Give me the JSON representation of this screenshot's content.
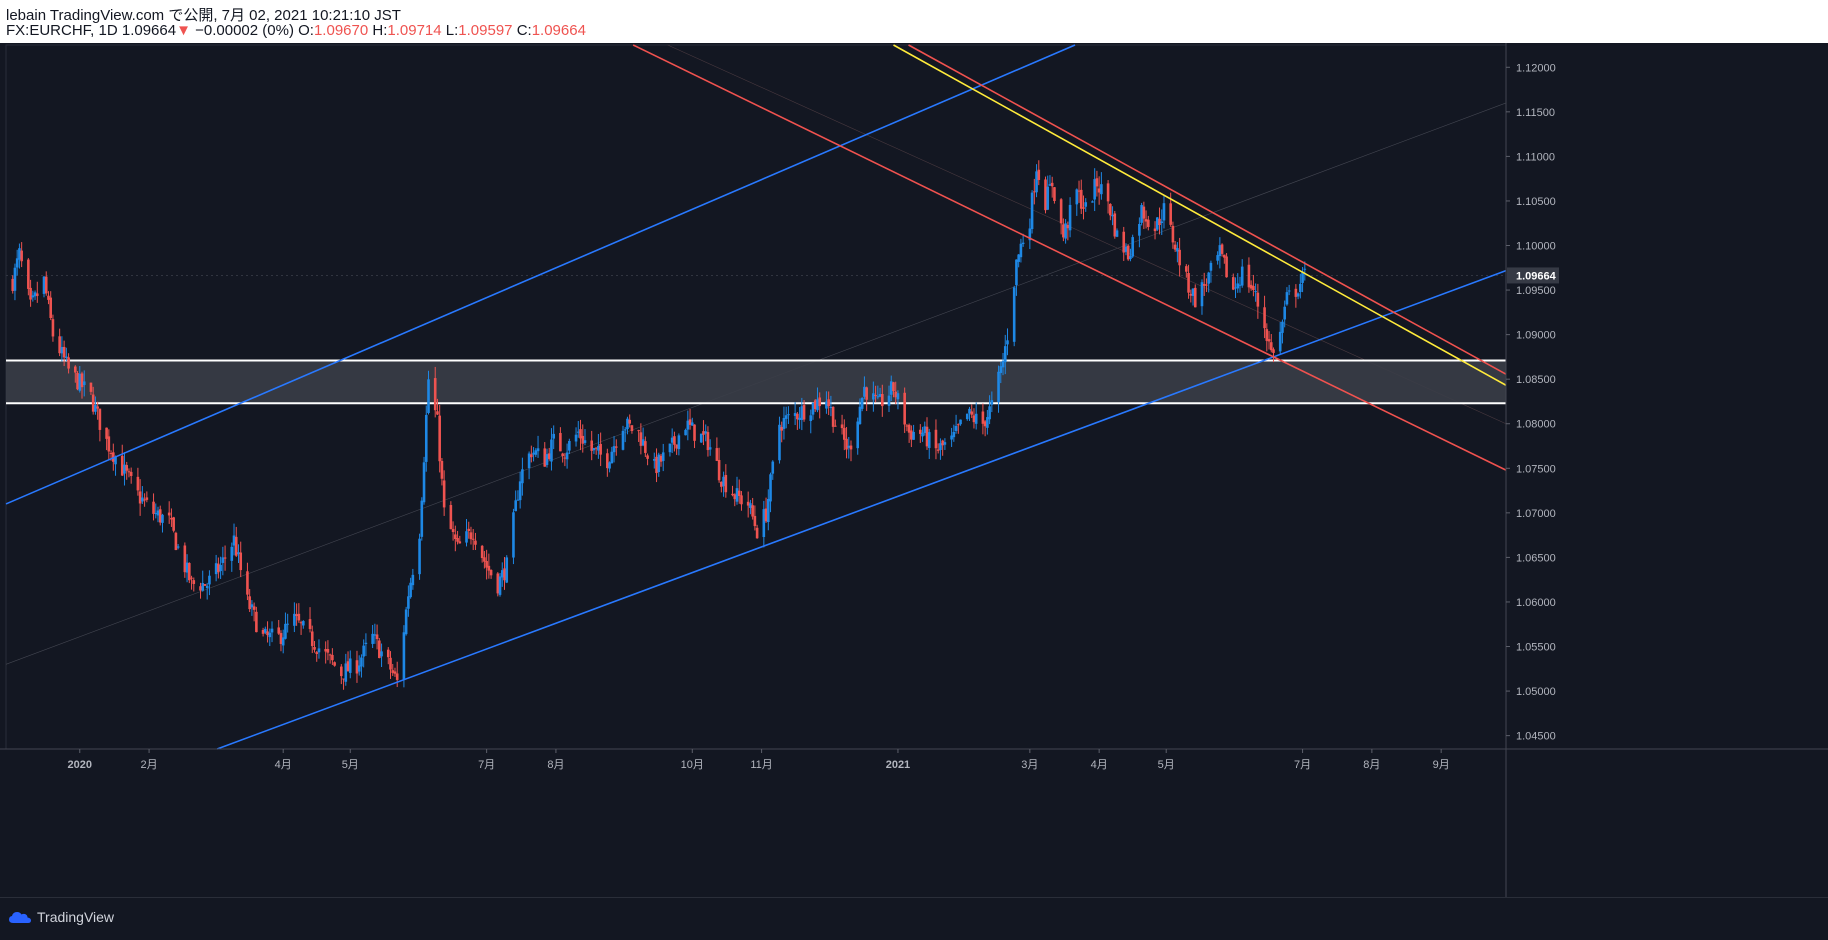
{
  "header": {
    "published": "lebain TradingView.com で公開, 7月 02, 2021 10:21:10 JST",
    "symbol": "FX:EURCHF, 1D",
    "last": "1.09664",
    "arrow": "▼",
    "change": "−0.00002 (0%)",
    "o_label": "O:",
    "o_value": "1.09670",
    "h_label": "H:",
    "h_value": "1.09714",
    "l_label": "L:",
    "l_value": "1.09597",
    "c_label": "C:",
    "c_value": "1.09664"
  },
  "footer": {
    "brand": "TradingView"
  },
  "colors": {
    "background": "#131722",
    "bull": "#2962ff",
    "bull_wick": "#1e88e5",
    "bear": "#ef5350",
    "channel_up": "#2979ff",
    "channel_down": "#f0524f",
    "trend_yellow": "#ffeb3b",
    "zone_fill": "#3a3d47",
    "zone_border": "#ffffff",
    "price_tag": "#363a45"
  },
  "chart_data": {
    "type": "candlestick",
    "symbol": "FX:EURCHF",
    "timeframe": "1D",
    "ylim": [
      1.0435,
      1.1225
    ],
    "y_ticks": [
      "1.12000",
      "1.11500",
      "1.11000",
      "1.10500",
      "1.10000",
      "1.09500",
      "1.09000",
      "1.08500",
      "1.08000",
      "1.07500",
      "1.07000",
      "1.06500",
      "1.06000",
      "1.05500",
      "1.05000",
      "1.04500"
    ],
    "last_price": "1.09664",
    "x_range": [
      "2019-11-29",
      "2021-09-30"
    ],
    "x_ticks": [
      {
        "date": "2020-01-01",
        "label": "2020",
        "bold": true
      },
      {
        "date": "2020-02-01",
        "label": "2月"
      },
      {
        "date": "2020-04-01",
        "label": "4月"
      },
      {
        "date": "2020-05-01",
        "label": "5月"
      },
      {
        "date": "2020-07-01",
        "label": "7月"
      },
      {
        "date": "2020-08-01",
        "label": "8月"
      },
      {
        "date": "2020-10-01",
        "label": "10月"
      },
      {
        "date": "2020-11-01",
        "label": "11月"
      },
      {
        "date": "2021-01-01",
        "label": "2021",
        "bold": true
      },
      {
        "date": "2021-03-01",
        "label": "3月"
      },
      {
        "date": "2021-04-01",
        "label": "4月"
      },
      {
        "date": "2021-05-01",
        "label": "5月"
      },
      {
        "date": "2021-07-01",
        "label": "7月"
      },
      {
        "date": "2021-08-01",
        "label": "8月"
      },
      {
        "date": "2021-09-01",
        "label": "9月"
      }
    ],
    "closes_anchor": [
      [
        "2019-12-02",
        1.096
      ],
      [
        "2019-12-05",
        1.099
      ],
      [
        "2019-12-10",
        1.093
      ],
      [
        "2019-12-16",
        1.096
      ],
      [
        "2019-12-20",
        1.09
      ],
      [
        "2019-12-27",
        1.086
      ],
      [
        "2020-01-06",
        1.083
      ],
      [
        "2020-01-13",
        1.078
      ],
      [
        "2020-01-20",
        1.075
      ],
      [
        "2020-01-27",
        1.072
      ],
      [
        "2020-02-03",
        1.07
      ],
      [
        "2020-02-10",
        1.069
      ],
      [
        "2020-02-14",
        1.066
      ],
      [
        "2020-02-20",
        1.062
      ],
      [
        "2020-02-27",
        1.062
      ],
      [
        "2020-03-04",
        1.064
      ],
      [
        "2020-03-10",
        1.067
      ],
      [
        "2020-03-16",
        1.06
      ],
      [
        "2020-03-23",
        1.056
      ],
      [
        "2020-03-30",
        1.056
      ],
      [
        "2020-04-06",
        1.058
      ],
      [
        "2020-04-13",
        1.056
      ],
      [
        "2020-04-20",
        1.054
      ],
      [
        "2020-04-27",
        1.052
      ],
      [
        "2020-05-04",
        1.053
      ],
      [
        "2020-05-11",
        1.056
      ],
      [
        "2020-05-18",
        1.053
      ],
      [
        "2020-05-22",
        1.051
      ],
      [
        "2020-05-27",
        1.061
      ],
      [
        "2020-06-01",
        1.068
      ],
      [
        "2020-06-05",
        1.085
      ],
      [
        "2020-06-09",
        1.08
      ],
      [
        "2020-06-12",
        1.07
      ],
      [
        "2020-06-18",
        1.066
      ],
      [
        "2020-06-25",
        1.068
      ],
      [
        "2020-07-01",
        1.064
      ],
      [
        "2020-07-06",
        1.062
      ],
      [
        "2020-07-10",
        1.064
      ],
      [
        "2020-07-16",
        1.074
      ],
      [
        "2020-07-21",
        1.077
      ],
      [
        "2020-07-27",
        1.076
      ],
      [
        "2020-07-31",
        1.078
      ],
      [
        "2020-08-05",
        1.077
      ],
      [
        "2020-08-11",
        1.079
      ],
      [
        "2020-08-17",
        1.077
      ],
      [
        "2020-08-24",
        1.076
      ],
      [
        "2020-08-31",
        1.08
      ],
      [
        "2020-09-07",
        1.079
      ],
      [
        "2020-09-14",
        1.075
      ],
      [
        "2020-09-21",
        1.077
      ],
      [
        "2020-09-28",
        1.08
      ],
      [
        "2020-10-02",
        1.079
      ],
      [
        "2020-10-08",
        1.078
      ],
      [
        "2020-10-14",
        1.074
      ],
      [
        "2020-10-20",
        1.072
      ],
      [
        "2020-10-26",
        1.071
      ],
      [
        "2020-10-30",
        1.068
      ],
      [
        "2020-11-03",
        1.07
      ],
      [
        "2020-11-09",
        1.08
      ],
      [
        "2020-11-16",
        1.081
      ],
      [
        "2020-11-23",
        1.082
      ],
      [
        "2020-11-30",
        1.083
      ],
      [
        "2020-12-04",
        1.08
      ],
      [
        "2020-12-10",
        1.077
      ],
      [
        "2020-12-17",
        1.084
      ],
      [
        "2020-12-23",
        1.082
      ],
      [
        "2020-12-30",
        1.084
      ],
      [
        "2021-01-06",
        1.079
      ],
      [
        "2021-01-12",
        1.079
      ],
      [
        "2021-01-18",
        1.077
      ],
      [
        "2021-01-25",
        1.078
      ],
      [
        "2021-02-01",
        1.081
      ],
      [
        "2021-02-08",
        1.08
      ],
      [
        "2021-02-12",
        1.082
      ],
      [
        "2021-02-17",
        1.087
      ],
      [
        "2021-02-19",
        1.09
      ],
      [
        "2021-02-23",
        1.098
      ],
      [
        "2021-02-25",
        1.1
      ],
      [
        "2021-03-01",
        1.103
      ],
      [
        "2021-03-04",
        1.109
      ],
      [
        "2021-03-08",
        1.105
      ],
      [
        "2021-03-11",
        1.107
      ],
      [
        "2021-03-16",
        1.101
      ],
      [
        "2021-03-22",
        1.106
      ],
      [
        "2021-03-26",
        1.104
      ],
      [
        "2021-03-31",
        1.107
      ],
      [
        "2021-04-05",
        1.105
      ],
      [
        "2021-04-09",
        1.101
      ],
      [
        "2021-04-14",
        1.099
      ],
      [
        "2021-04-20",
        1.104
      ],
      [
        "2021-04-26",
        1.102
      ],
      [
        "2021-04-30",
        1.104
      ],
      [
        "2021-05-05",
        1.1
      ],
      [
        "2021-05-10",
        1.096
      ],
      [
        "2021-05-14",
        1.094
      ],
      [
        "2021-05-19",
        1.096
      ],
      [
        "2021-05-25",
        1.099
      ],
      [
        "2021-05-31",
        1.095
      ],
      [
        "2021-06-04",
        1.097
      ],
      [
        "2021-06-09",
        1.095
      ],
      [
        "2021-06-14",
        1.091
      ],
      [
        "2021-06-17",
        1.088
      ],
      [
        "2021-06-21",
        1.09
      ],
      [
        "2021-06-24",
        1.094
      ],
      [
        "2021-06-28",
        1.095
      ],
      [
        "2021-07-02",
        1.0966
      ]
    ],
    "zone": [
      1.0823,
      1.0871
    ],
    "trend_lines": [
      {
        "color": "blue",
        "points": [
          [
            "2019-11-29",
            1.071
          ],
          [
            "2021-02-26",
            1.12
          ]
        ]
      },
      {
        "color": "blue",
        "points": [
          [
            "2020-05-22",
            1.051
          ],
          [
            "2021-06-18",
            1.0875
          ]
        ]
      },
      {
        "color": "red",
        "points": [
          [
            "2020-09-25",
            1.12
          ],
          [
            "2021-06-18",
            1.0875
          ]
        ]
      },
      {
        "color": "red",
        "points": [
          [
            "2021-03-01",
            1.115
          ],
          [
            "2021-07-02",
            1.098
          ]
        ]
      },
      {
        "color": "yellow",
        "points": [
          [
            "2021-03-01",
            1.114
          ],
          [
            "2021-07-01",
            1.097
          ]
        ]
      }
    ]
  }
}
